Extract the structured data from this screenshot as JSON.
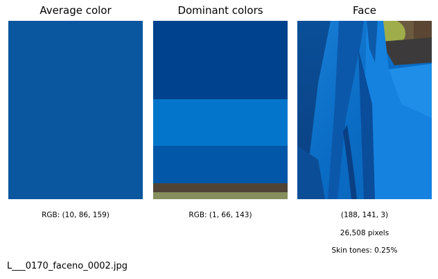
{
  "panels": {
    "average": {
      "title": "Average color",
      "color": "#0a569f",
      "rgb_label": "RGB: (10, 86, 159)"
    },
    "dominant": {
      "title": "Dominant colors",
      "rgb_label": "RGB: (1, 66, 143)",
      "stripes": [
        {
          "color": "#01428f",
          "share": 0.44
        },
        {
          "color": "#0376cb",
          "share": 0.26
        },
        {
          "color": "#0257a8",
          "share": 0.21
        },
        {
          "color": "#514436",
          "share": 0.05
        },
        {
          "color": "#868f5d",
          "share": 0.04
        }
      ]
    },
    "face": {
      "title": "Face",
      "rgb_label": "(188, 141, 3)",
      "pixels_label": "26,508 pixels",
      "skin_label": "Skin tones: 0.25%"
    }
  },
  "filename": "L___0170_faceno_0002.jpg"
}
